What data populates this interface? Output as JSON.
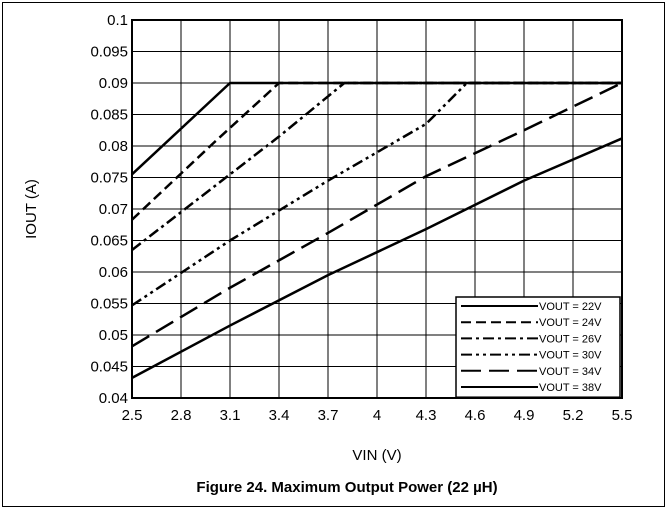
{
  "chart_data": {
    "type": "line",
    "title": "",
    "caption": "Figure 24. Maximum Output Power (22 µH)",
    "xlabel": "VIN (V)",
    "ylabel": "IOUT (A)",
    "xlim": [
      2.5,
      5.5
    ],
    "ylim": [
      0.04,
      0.1
    ],
    "xticks": [
      "2.5",
      "2.8",
      "3.1",
      "3.4",
      "3.7",
      "4",
      "4.3",
      "4.6",
      "4.9",
      "5.2",
      "5.5"
    ],
    "yticks": [
      "0.04",
      "0.045",
      "0.05",
      "0.055",
      "0.06",
      "0.065",
      "0.07",
      "0.075",
      "0.08",
      "0.085",
      "0.09",
      "0.095",
      "0.1"
    ],
    "grid": true,
    "legend_position": "bottom-right",
    "series": [
      {
        "name": "VOUT = 22V",
        "dash": "solid",
        "width": 2.5,
        "points": [
          [
            2.5,
            0.0755
          ],
          [
            3.1,
            0.09
          ],
          [
            5.5,
            0.09
          ]
        ]
      },
      {
        "name": "VOUT = 24V",
        "dash": "dash",
        "width": 2.5,
        "points": [
          [
            2.5,
            0.0683
          ],
          [
            3.0,
            0.0805
          ],
          [
            3.4,
            0.09
          ],
          [
            5.5,
            0.09
          ]
        ]
      },
      {
        "name": "VOUT = 26V",
        "dash": "dashdot",
        "width": 2.5,
        "points": [
          [
            2.5,
            0.0635
          ],
          [
            3.1,
            0.0755
          ],
          [
            3.4,
            0.0815
          ],
          [
            3.8,
            0.09
          ],
          [
            5.5,
            0.09
          ]
        ]
      },
      {
        "name": "VOUT = 30V",
        "dash": "dashdotdot",
        "width": 2.5,
        "points": [
          [
            2.5,
            0.0547
          ],
          [
            3.1,
            0.065
          ],
          [
            3.7,
            0.0745
          ],
          [
            4.3,
            0.0835
          ],
          [
            4.55,
            0.09
          ],
          [
            5.5,
            0.09
          ]
        ]
      },
      {
        "name": "VOUT = 34V",
        "dash": "longdash",
        "width": 2.5,
        "points": [
          [
            2.5,
            0.0482
          ],
          [
            3.1,
            0.0575
          ],
          [
            3.7,
            0.0662
          ],
          [
            4.3,
            0.0752
          ],
          [
            4.9,
            0.0825
          ],
          [
            5.5,
            0.09
          ]
        ]
      },
      {
        "name": "VOUT = 38V",
        "dash": "solid",
        "width": 2.5,
        "points": [
          [
            2.5,
            0.0432
          ],
          [
            3.1,
            0.0515
          ],
          [
            3.7,
            0.0595
          ],
          [
            4.3,
            0.0668
          ],
          [
            4.9,
            0.0745
          ],
          [
            5.5,
            0.0812
          ]
        ]
      }
    ]
  }
}
